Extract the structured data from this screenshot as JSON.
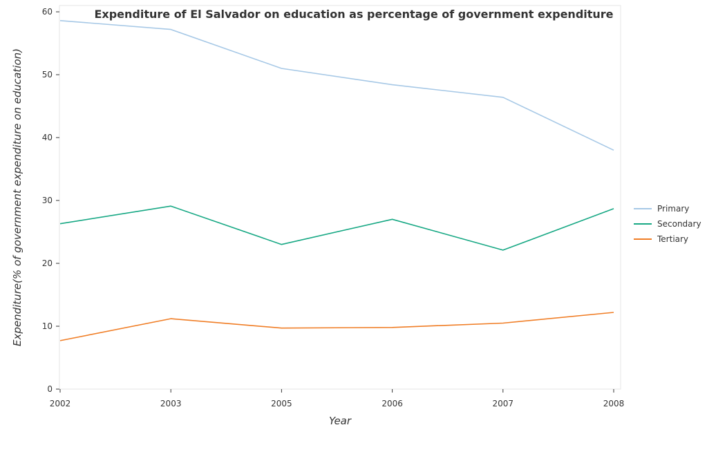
{
  "chart_data": {
    "type": "line",
    "title": "Expenditure of El Salvador on education as percentage of government expenditure",
    "xlabel": "Year",
    "ylabel": "Expenditure(% of government expenditure on education)",
    "categories": [
      "2002",
      "2003",
      "2005",
      "2006",
      "2007",
      "2008"
    ],
    "ylim": [
      0,
      61
    ],
    "yticks": [
      0,
      10,
      20,
      30,
      40,
      50,
      60
    ],
    "grid": false,
    "legend_position": "right",
    "series": [
      {
        "name": "Primary",
        "color": "#a6c8e6",
        "values": [
          58.6,
          57.2,
          51.0,
          48.4,
          46.4,
          38.0
        ]
      },
      {
        "name": "Secondary",
        "color": "#17a884",
        "values": [
          26.3,
          29.1,
          23.0,
          27.0,
          22.1,
          28.7
        ]
      },
      {
        "name": "Tertiary",
        "color": "#f07d25",
        "values": [
          7.7,
          11.2,
          9.7,
          9.8,
          10.5,
          12.2
        ]
      }
    ]
  }
}
